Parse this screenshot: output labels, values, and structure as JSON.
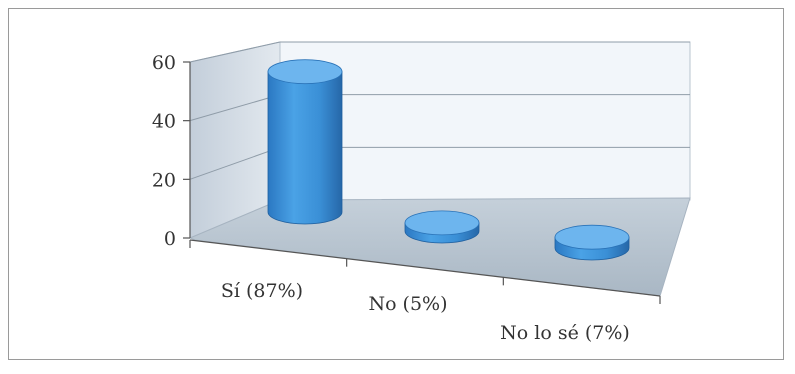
{
  "chart_data": {
    "type": "bar",
    "style": "3d-cylinder",
    "categories": [
      "Sí (87%)",
      "No (5%)",
      "No lo sé (7%)"
    ],
    "values": [
      52,
      3,
      4
    ],
    "ylim": [
      0,
      60
    ],
    "yticks": [
      "0",
      "20",
      "40",
      "60"
    ],
    "grid": true,
    "legend": "none",
    "colors": {
      "bar": "#3a8fd6",
      "bar_dark": "#2a73b8",
      "bar_top": "#6db5ee",
      "wall": "#d3dde6",
      "floor": "#b6c3d0",
      "backwall": "#f2f6fa"
    }
  }
}
